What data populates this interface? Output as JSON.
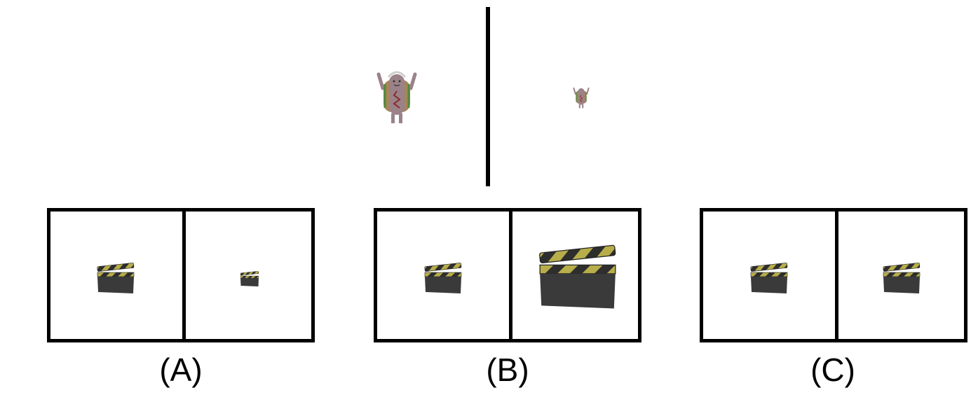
{
  "reference": {
    "left_figure": "hotdog-character",
    "right_figure": "hotdog-character",
    "right_scale": 0.5
  },
  "options": [
    {
      "label": "(A)",
      "left_figure": "clapperboard",
      "right_figure": "clapperboard",
      "right_scale": 0.5
    },
    {
      "label": "(B)",
      "left_figure": "clapperboard",
      "right_figure": "clapperboard",
      "right_scale": 2.1
    },
    {
      "label": "(C)",
      "left_figure": "clapperboard",
      "right_figure": "clapperboard",
      "right_scale": 1.0
    }
  ],
  "colors": {
    "line": "#000000",
    "hotdog_body": "#9b8288",
    "bun": "#a8845a",
    "lettuce": "#4f8a3c",
    "clapper_dark": "#3a3a3a",
    "clapper_stripe": "#b7ad4a"
  }
}
